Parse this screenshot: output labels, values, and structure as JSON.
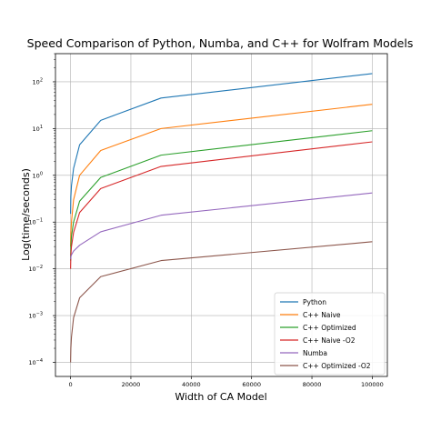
{
  "chart_data": {
    "type": "line",
    "title": "Speed Comparison of Python, Numba, and C++ for Wolfram Models",
    "xlabel": "Width of CA Model",
    "ylabel": "Log(time/seconds)",
    "yscale": "log",
    "xlim": [
      -5000,
      105000
    ],
    "ylim": [
      5e-05,
      400
    ],
    "grid": true,
    "legend_position": "bottom-right",
    "x_ticks": [
      {
        "value": 0,
        "label": "0"
      },
      {
        "value": 20000,
        "label": "20000"
      },
      {
        "value": 40000,
        "label": "40000"
      },
      {
        "value": 60000,
        "label": "60000"
      },
      {
        "value": 80000,
        "label": "80000"
      },
      {
        "value": 100000,
        "label": "100000"
      }
    ],
    "y_ticks": [
      {
        "value": 0.0001,
        "base": "10",
        "exp": "−4"
      },
      {
        "value": 0.001,
        "base": "10",
        "exp": "−3"
      },
      {
        "value": 0.01,
        "base": "10",
        "exp": "−2"
      },
      {
        "value": 0.1,
        "base": "10",
        "exp": "−1"
      },
      {
        "value": 1,
        "base": "10",
        "exp": "0"
      },
      {
        "value": 10,
        "base": "10",
        "exp": "1"
      },
      {
        "value": 100,
        "base": "10",
        "exp": "2"
      }
    ],
    "x": [
      10,
      100,
      300,
      1000,
      3000,
      10000,
      30000,
      100000
    ],
    "series": [
      {
        "name": "Python",
        "color": "#1f77b4",
        "values": [
          0.15,
          0.35,
          0.6,
          1.4,
          4.5,
          15,
          45,
          150
        ]
      },
      {
        "name": "C++ Naive",
        "color": "#ff7f0e",
        "values": [
          0.03,
          0.06,
          0.1,
          0.3,
          1.0,
          3.4,
          10,
          33
        ]
      },
      {
        "name": "C++ Optimized",
        "color": "#2ca02c",
        "values": [
          0.015,
          0.03,
          0.05,
          0.1,
          0.28,
          0.9,
          2.7,
          9.0
        ]
      },
      {
        "name": "C++ Naive -O2",
        "color": "#d62728",
        "values": [
          0.01,
          0.02,
          0.03,
          0.06,
          0.16,
          0.52,
          1.55,
          5.2
        ]
      },
      {
        "name": "Numba",
        "color": "#9467bd",
        "values": [
          0.016,
          0.018,
          0.02,
          0.024,
          0.032,
          0.062,
          0.14,
          0.42
        ]
      },
      {
        "name": "C++ Optimized -O2",
        "color": "#8c564b",
        "values": [
          0.0001,
          0.0002,
          0.00035,
          0.0009,
          0.0024,
          0.0068,
          0.015,
          0.038
        ]
      }
    ]
  }
}
